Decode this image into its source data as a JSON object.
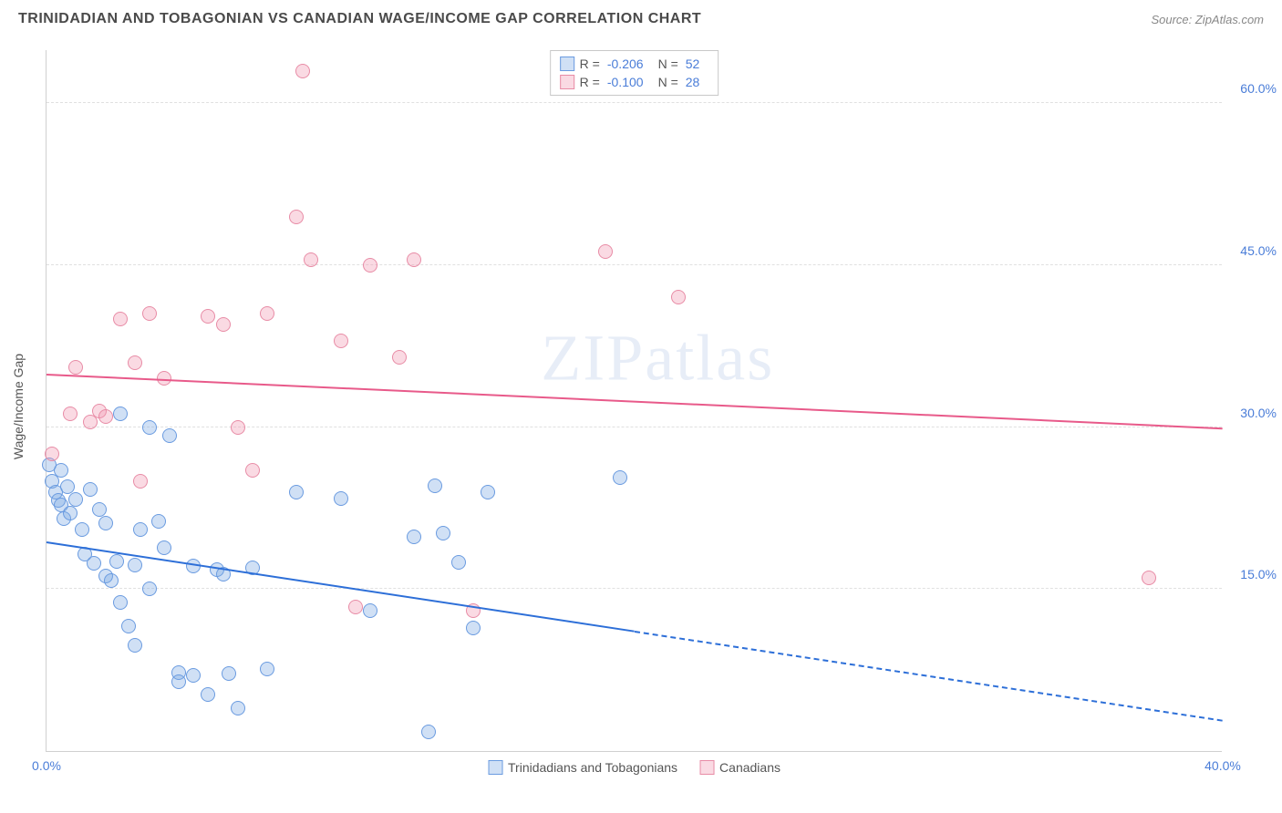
{
  "title": "TRINIDADIAN AND TOBAGONIAN VS CANADIAN WAGE/INCOME GAP CORRELATION CHART",
  "source": "Source: ZipAtlas.com",
  "watermark": "ZIPatlas",
  "chart": {
    "type": "scatter",
    "y_axis_label": "Wage/Income Gap",
    "xlim": [
      0,
      40
    ],
    "ylim": [
      0,
      65
    ],
    "yticks": [
      {
        "v": 15,
        "label": "15.0%"
      },
      {
        "v": 30,
        "label": "30.0%"
      },
      {
        "v": 45,
        "label": "45.0%"
      },
      {
        "v": 60,
        "label": "60.0%"
      }
    ],
    "xticks": [
      {
        "v": 0,
        "label": "0.0%"
      },
      {
        "v": 40,
        "label": "40.0%"
      }
    ],
    "grid_color": "#e0e0e0",
    "axis_color": "#d0d0d0",
    "tick_label_color": "#4a7dd8",
    "series": [
      {
        "name": "Trinidadians and Tobagonians",
        "fill": "rgba(120,165,225,0.35)",
        "stroke": "#6a9be0",
        "marker_r": 8,
        "line_color": "#2d6fd8",
        "regression": {
          "x1": 0,
          "y1": 19.5,
          "x2": 40,
          "y2": 3,
          "solid_until_x": 20
        },
        "points": [
          [
            0.1,
            26.5
          ],
          [
            0.2,
            25
          ],
          [
            0.3,
            24
          ],
          [
            0.4,
            23.2
          ],
          [
            0.5,
            26
          ],
          [
            0.5,
            22.8
          ],
          [
            0.6,
            21.5
          ],
          [
            0.7,
            24.5
          ],
          [
            0.8,
            22
          ],
          [
            1.0,
            23.3
          ],
          [
            1.2,
            20.5
          ],
          [
            1.3,
            18.2
          ],
          [
            1.5,
            24.2
          ],
          [
            1.6,
            17.4
          ],
          [
            1.8,
            22.4
          ],
          [
            2.0,
            16.2
          ],
          [
            2.0,
            21.1
          ],
          [
            2.2,
            15.8
          ],
          [
            2.4,
            17.6
          ],
          [
            2.5,
            13.8
          ],
          [
            2.5,
            31.2
          ],
          [
            2.8,
            11.6
          ],
          [
            3.0,
            17.2
          ],
          [
            3.0,
            9.8
          ],
          [
            3.2,
            20.5
          ],
          [
            3.5,
            15.0
          ],
          [
            3.5,
            30.0
          ],
          [
            3.8,
            21.3
          ],
          [
            4.0,
            18.8
          ],
          [
            4.2,
            29.2
          ],
          [
            4.5,
            7.3
          ],
          [
            4.5,
            6.4
          ],
          [
            5.0,
            7.0
          ],
          [
            5.0,
            17.1
          ],
          [
            5.5,
            5.2
          ],
          [
            5.8,
            16.8
          ],
          [
            6.0,
            16.4
          ],
          [
            6.2,
            7.2
          ],
          [
            6.5,
            4.0
          ],
          [
            7.0,
            17.0
          ],
          [
            7.5,
            7.6
          ],
          [
            8.5,
            24.0
          ],
          [
            10.0,
            23.4
          ],
          [
            12.5,
            19.8
          ],
          [
            13.0,
            1.8
          ],
          [
            13.2,
            24.6
          ],
          [
            13.5,
            20.2
          ],
          [
            14.0,
            17.5
          ],
          [
            15.0,
            24.0
          ],
          [
            19.5,
            25.3
          ],
          [
            14.5,
            11.4
          ],
          [
            11.0,
            13.0
          ]
        ]
      },
      {
        "name": "Canadians",
        "fill": "rgba(240,150,175,0.35)",
        "stroke": "#e88ca6",
        "marker_r": 8,
        "line_color": "#e85a8a",
        "regression": {
          "x1": 0,
          "y1": 35,
          "x2": 40,
          "y2": 30,
          "solid_until_x": 40
        },
        "points": [
          [
            0.2,
            27.5
          ],
          [
            0.8,
            31.2
          ],
          [
            1.0,
            35.5
          ],
          [
            1.5,
            30.5
          ],
          [
            1.8,
            31.5
          ],
          [
            2.0,
            31.0
          ],
          [
            2.5,
            40.0
          ],
          [
            3.0,
            36.0
          ],
          [
            3.2,
            25.0
          ],
          [
            3.5,
            40.5
          ],
          [
            4.0,
            34.5
          ],
          [
            5.5,
            40.3
          ],
          [
            6.0,
            39.5
          ],
          [
            6.5,
            30.0
          ],
          [
            7.0,
            26.0
          ],
          [
            7.5,
            40.5
          ],
          [
            8.5,
            49.5
          ],
          [
            8.7,
            63.0
          ],
          [
            9.0,
            45.5
          ],
          [
            10.0,
            38.0
          ],
          [
            10.5,
            13.3
          ],
          [
            11.0,
            45.0
          ],
          [
            12.0,
            36.5
          ],
          [
            12.5,
            45.5
          ],
          [
            14.5,
            13.0
          ],
          [
            19.0,
            46.3
          ],
          [
            21.5,
            42.0
          ],
          [
            37.5,
            16.0
          ]
        ]
      }
    ],
    "stats": [
      {
        "swatch_fill": "rgba(120,165,225,0.35)",
        "swatch_stroke": "#6a9be0",
        "R": "-0.206",
        "N": "52"
      },
      {
        "swatch_fill": "rgba(240,150,175,0.35)",
        "swatch_stroke": "#e88ca6",
        "R": "-0.100",
        "N": "28"
      }
    ],
    "legend_bottom": [
      {
        "swatch_fill": "rgba(120,165,225,0.35)",
        "swatch_stroke": "#6a9be0",
        "label": "Trinidadians and Tobagonians"
      },
      {
        "swatch_fill": "rgba(240,150,175,0.35)",
        "swatch_stroke": "#e88ca6",
        "label": "Canadians"
      }
    ]
  }
}
